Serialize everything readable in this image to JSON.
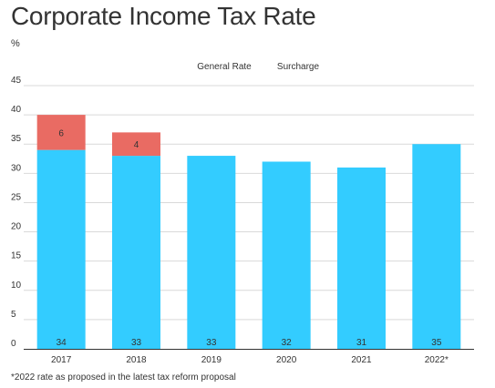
{
  "title": "Corporate Income Tax Rate",
  "unit_label": "%",
  "footnote": "*2022 rate as proposed in the latest tax reform proposal",
  "colors": {
    "general_rate": "#33ccff",
    "surcharge": "#e96b63",
    "grid": "#d9d9d9",
    "axis": "#333333",
    "text": "#333333"
  },
  "chart_data": {
    "type": "bar",
    "stacked": true,
    "title": "Corporate Income Tax Rate",
    "ylabel": "%",
    "xlabel": "",
    "categories": [
      "2017",
      "2018",
      "2019",
      "2020",
      "2021",
      "2022*"
    ],
    "series": [
      {
        "name": "General Rate",
        "values": [
          34,
          33,
          33,
          32,
          31,
          35
        ],
        "color": "#33ccff"
      },
      {
        "name": "Surcharge",
        "values": [
          6,
          4,
          0,
          0,
          0,
          0
        ],
        "color": "#e96b63"
      }
    ],
    "ylim": [
      0,
      45
    ],
    "yticks": [
      0,
      5,
      10,
      15,
      20,
      25,
      30,
      35,
      40,
      45
    ],
    "grid": true,
    "legend": "top-center"
  }
}
